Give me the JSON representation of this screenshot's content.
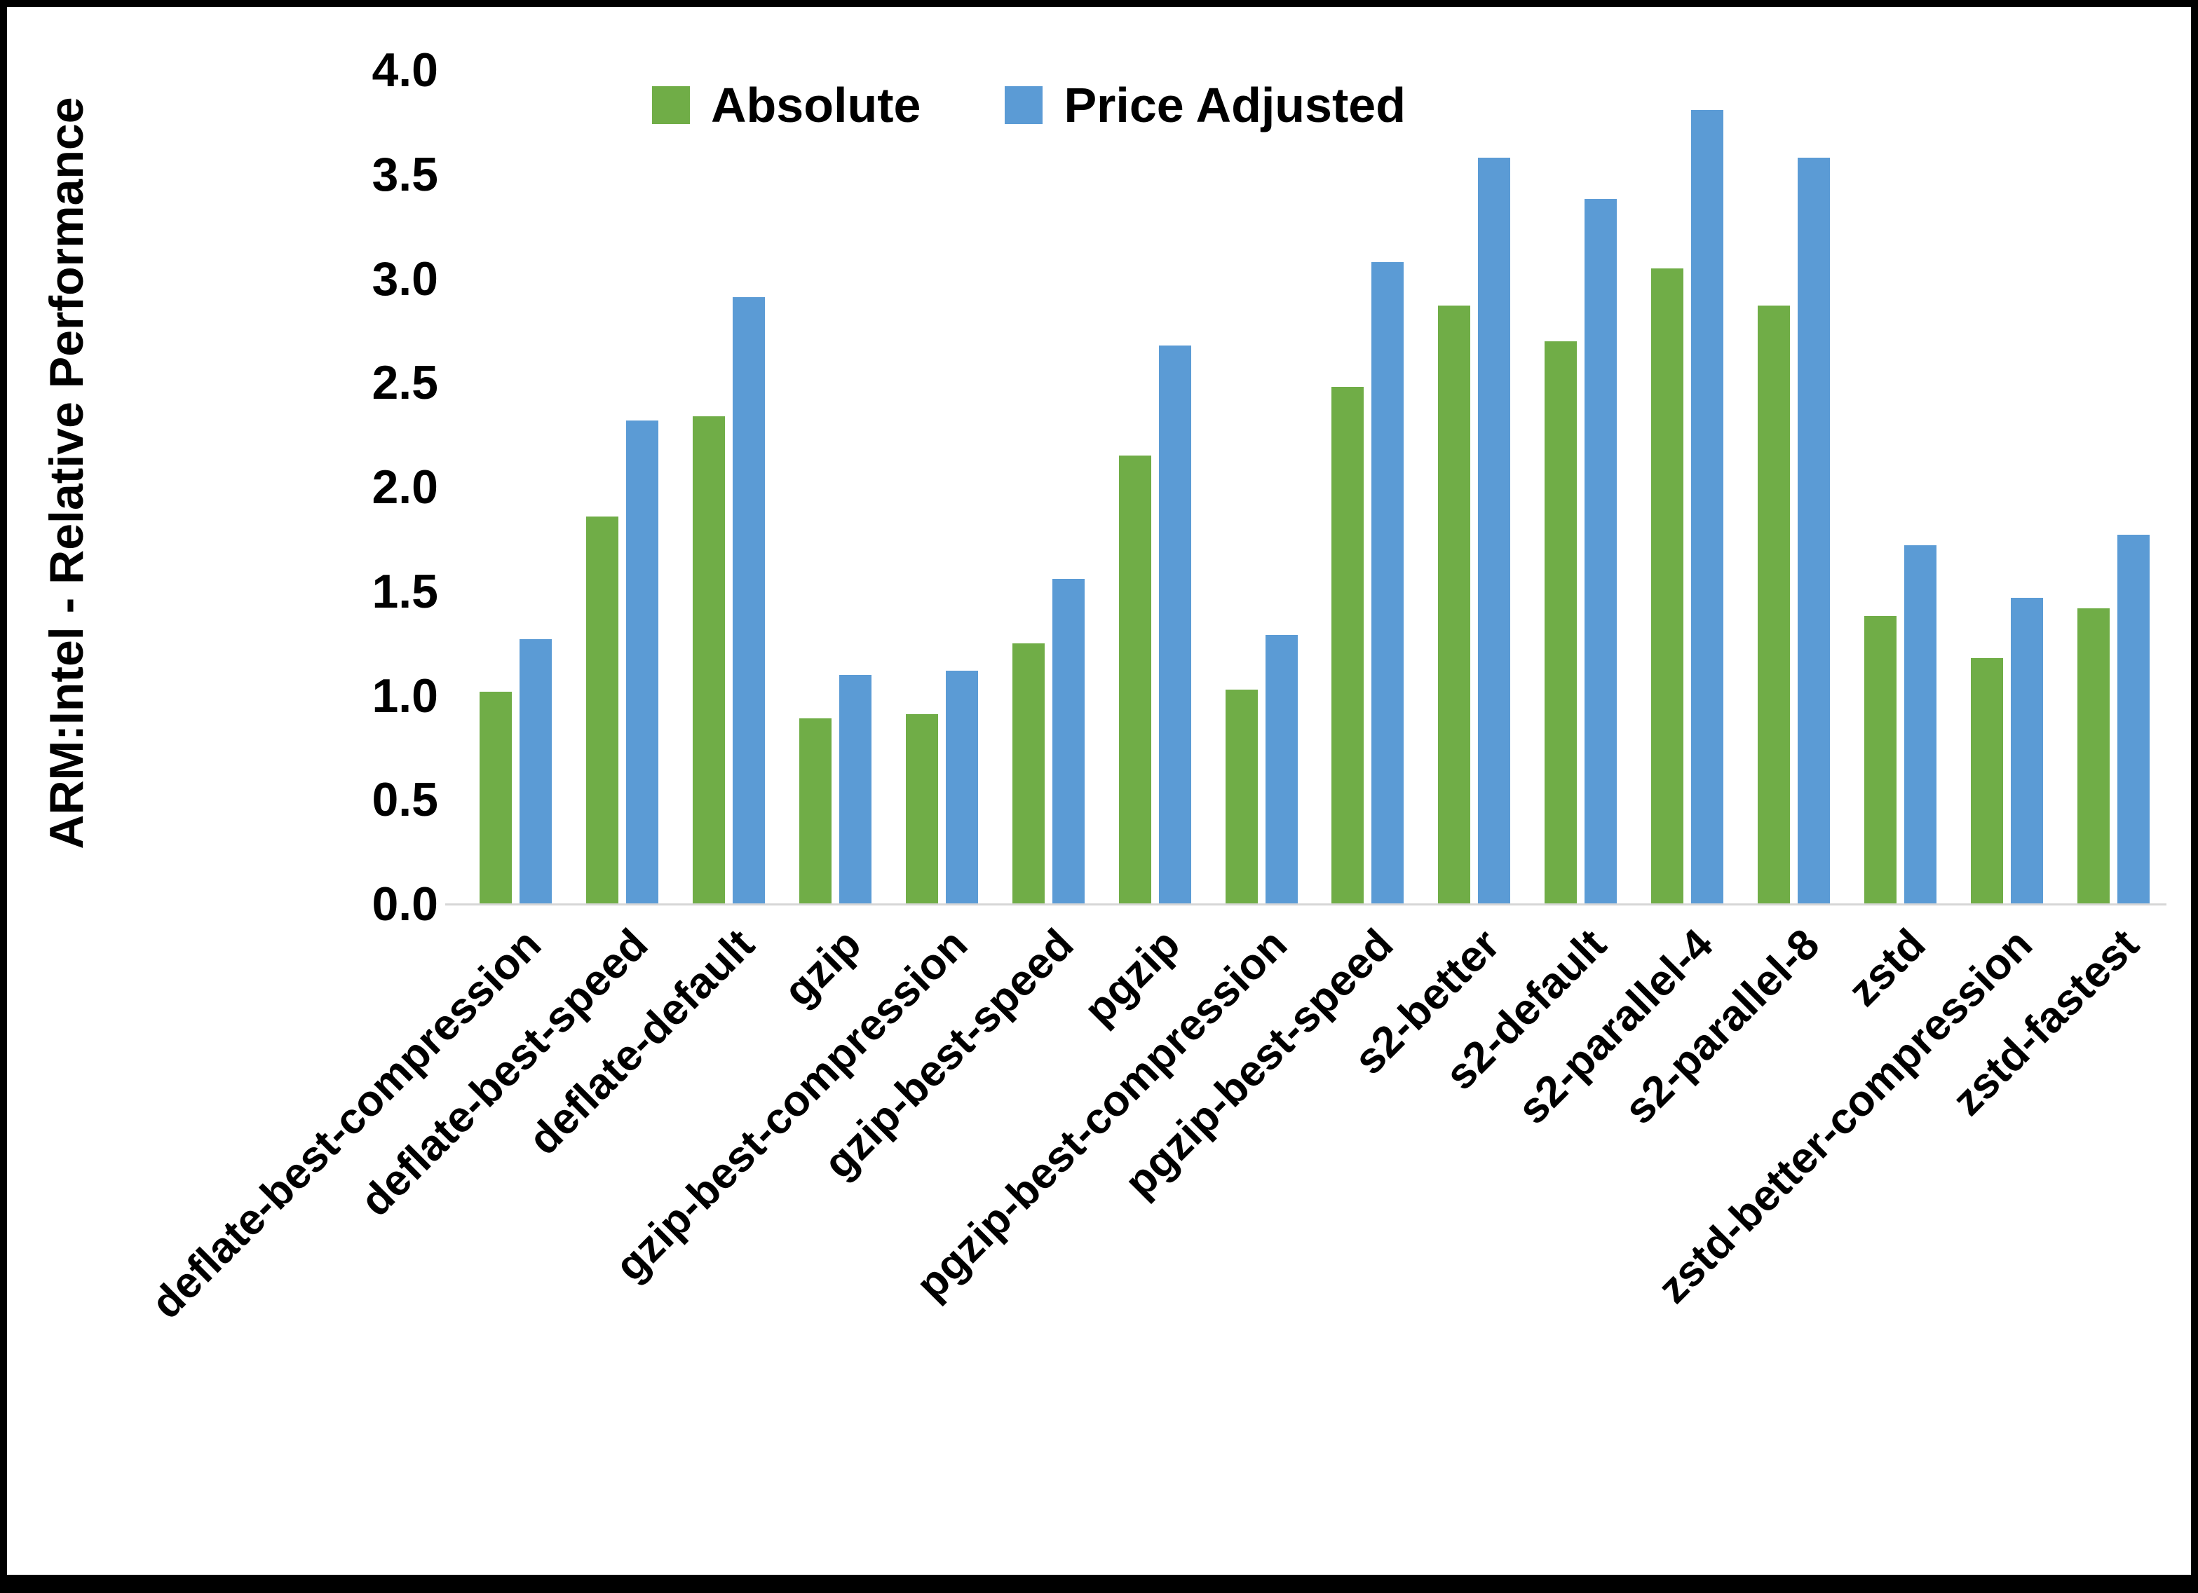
{
  "chart_data": {
    "type": "bar",
    "title": "",
    "xlabel": "",
    "ylabel": "ARM:Intel - Relative Performance",
    "ylim": [
      0,
      4.0
    ],
    "ytick_step": 0.5,
    "yticks": [
      "0.0",
      "0.5",
      "1.0",
      "1.5",
      "2.0",
      "2.5",
      "3.0",
      "3.5",
      "4.0"
    ],
    "grid": false,
    "legend_position": "top",
    "categories": [
      "deflate-best-compression",
      "deflate-best-speed",
      "deflate-default",
      "gzip",
      "gzip-best-compression",
      "gzip-best-speed",
      "pgzip",
      "pgzip-best-compression",
      "pgzip-best-speed",
      "s2-better",
      "s2-default",
      "s2-parallel-4",
      "s2-parallel-8",
      "zstd",
      "zstd-better-compression",
      "zstd-fastest"
    ],
    "series": [
      {
        "name": "Absolute",
        "color": "#70AD47",
        "values": [
          1.02,
          1.86,
          2.34,
          0.89,
          0.91,
          1.25,
          2.15,
          1.03,
          2.48,
          2.87,
          2.7,
          3.05,
          2.87,
          1.38,
          1.18,
          1.42
        ]
      },
      {
        "name": "Price Adjusted",
        "color": "#5B9BD5",
        "values": [
          1.27,
          2.32,
          2.91,
          1.1,
          1.12,
          1.56,
          2.68,
          1.29,
          3.08,
          3.58,
          3.38,
          3.81,
          3.58,
          1.72,
          1.47,
          1.77
        ]
      }
    ]
  }
}
